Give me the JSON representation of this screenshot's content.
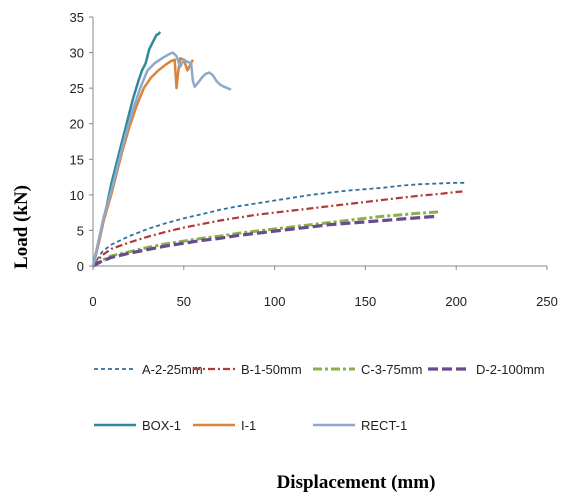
{
  "chart_data": {
    "type": "line",
    "title": "",
    "xlabel": "Displacement (mm)",
    "ylabel": "Load (kN)",
    "xlim": [
      0,
      250
    ],
    "ylim": [
      0,
      35
    ],
    "xticks": [
      "0",
      "50",
      "100",
      "150",
      "200",
      "250"
    ],
    "yticks": [
      "0",
      "5",
      "10",
      "15",
      "20",
      "25",
      "30",
      "35"
    ],
    "grid": false,
    "legend_position": "bottom",
    "series": [
      {
        "name": "A-2-25mm",
        "color": "#2f6f9f",
        "dash": "dotted",
        "points": [
          [
            0,
            0
          ],
          [
            5,
            2
          ],
          [
            10,
            3
          ],
          [
            20,
            4.2
          ],
          [
            30,
            5.2
          ],
          [
            40,
            6
          ],
          [
            50,
            6.7
          ],
          [
            60,
            7.3
          ],
          [
            70,
            7.9
          ],
          [
            80,
            8.4
          ],
          [
            90,
            8.8
          ],
          [
            100,
            9.2
          ],
          [
            110,
            9.6
          ],
          [
            120,
            10
          ],
          [
            130,
            10.3
          ],
          [
            140,
            10.6
          ],
          [
            150,
            10.8
          ],
          [
            160,
            11
          ],
          [
            170,
            11.3
          ],
          [
            180,
            11.5
          ],
          [
            190,
            11.6
          ],
          [
            200,
            11.7
          ],
          [
            205,
            11.7
          ]
        ]
      },
      {
        "name": "B-1-50mm",
        "color": "#b03a3a",
        "dash": "dashdot",
        "points": [
          [
            0,
            0
          ],
          [
            5,
            1.5
          ],
          [
            10,
            2.4
          ],
          [
            20,
            3.3
          ],
          [
            30,
            4.1
          ],
          [
            40,
            4.8
          ],
          [
            50,
            5.4
          ],
          [
            60,
            5.9
          ],
          [
            70,
            6.4
          ],
          [
            80,
            6.8
          ],
          [
            90,
            7.2
          ],
          [
            100,
            7.5
          ],
          [
            110,
            7.8
          ],
          [
            120,
            8.1
          ],
          [
            130,
            8.4
          ],
          [
            140,
            8.7
          ],
          [
            150,
            9
          ],
          [
            160,
            9.3
          ],
          [
            170,
            9.6
          ],
          [
            180,
            9.9
          ],
          [
            190,
            10.1
          ],
          [
            200,
            10.4
          ],
          [
            205,
            10.5
          ]
        ]
      },
      {
        "name": "C-3-75mm",
        "color": "#8ab04a",
        "dash": "longdashdot",
        "points": [
          [
            0,
            0
          ],
          [
            5,
            0.8
          ],
          [
            10,
            1.4
          ],
          [
            20,
            2
          ],
          [
            30,
            2.6
          ],
          [
            40,
            3.1
          ],
          [
            50,
            3.5
          ],
          [
            60,
            3.9
          ],
          [
            70,
            4.2
          ],
          [
            80,
            4.6
          ],
          [
            90,
            4.9
          ],
          [
            100,
            5.2
          ],
          [
            110,
            5.5
          ],
          [
            120,
            5.8
          ],
          [
            130,
            6.1
          ],
          [
            140,
            6.4
          ],
          [
            150,
            6.7
          ],
          [
            160,
            7
          ],
          [
            170,
            7.2
          ],
          [
            178,
            7.4
          ],
          [
            185,
            7.5
          ],
          [
            190,
            7.6
          ]
        ]
      },
      {
        "name": "D-2-100mm",
        "color": "#6a4a8f",
        "dash": "longdash",
        "points": [
          [
            0,
            0
          ],
          [
            5,
            0.7
          ],
          [
            10,
            1.2
          ],
          [
            20,
            1.8
          ],
          [
            30,
            2.3
          ],
          [
            40,
            2.8
          ],
          [
            50,
            3.2
          ],
          [
            60,
            3.6
          ],
          [
            70,
            3.9
          ],
          [
            80,
            4.3
          ],
          [
            90,
            4.6
          ],
          [
            100,
            4.9
          ],
          [
            110,
            5.2
          ],
          [
            120,
            5.5
          ],
          [
            130,
            5.8
          ],
          [
            140,
            6
          ],
          [
            150,
            6.2
          ],
          [
            160,
            6.4
          ],
          [
            170,
            6.6
          ],
          [
            180,
            6.8
          ],
          [
            190,
            7
          ]
        ]
      },
      {
        "name": "BOX-1",
        "color": "#2e8a9a",
        "dash": "solid",
        "points": [
          [
            0,
            0
          ],
          [
            2,
            2
          ],
          [
            5,
            5.5
          ],
          [
            8,
            9
          ],
          [
            10,
            11.5
          ],
          [
            12,
            13.5
          ],
          [
            15,
            16.5
          ],
          [
            18,
            19.5
          ],
          [
            20,
            21.5
          ],
          [
            22,
            23.5
          ],
          [
            25,
            26
          ],
          [
            27,
            27.5
          ],
          [
            29,
            28.5
          ],
          [
            30,
            29.5
          ],
          [
            31,
            30.5
          ],
          [
            32,
            31
          ],
          [
            33,
            31.5
          ],
          [
            34,
            32
          ],
          [
            35,
            32.5
          ],
          [
            36,
            32.6
          ],
          [
            37,
            32.9
          ]
        ]
      },
      {
        "name": "I-1",
        "color": "#d9843a",
        "dash": "solid",
        "points": [
          [
            0,
            0
          ],
          [
            3,
            3
          ],
          [
            6,
            6.5
          ],
          [
            10,
            10
          ],
          [
            13,
            13
          ],
          [
            16,
            16
          ],
          [
            20,
            19.5
          ],
          [
            24,
            22.5
          ],
          [
            28,
            25
          ],
          [
            32,
            26.5
          ],
          [
            36,
            27.5
          ],
          [
            40,
            28.3
          ],
          [
            43,
            28.8
          ],
          [
            45,
            29
          ],
          [
            46,
            25
          ],
          [
            47,
            27.5
          ],
          [
            48,
            29.2
          ],
          [
            50,
            29
          ],
          [
            52,
            27.5
          ],
          [
            54,
            28.5
          ],
          [
            55,
            29
          ]
        ]
      },
      {
        "name": "RECT-1",
        "color": "#8ea8cc",
        "dash": "solid",
        "points": [
          [
            0,
            0
          ],
          [
            3,
            3.5
          ],
          [
            6,
            7
          ],
          [
            10,
            10.5
          ],
          [
            14,
            14.5
          ],
          [
            18,
            18.5
          ],
          [
            22,
            22
          ],
          [
            26,
            25
          ],
          [
            30,
            27.5
          ],
          [
            34,
            28.5
          ],
          [
            38,
            29.2
          ],
          [
            42,
            29.8
          ],
          [
            44,
            30
          ],
          [
            46,
            29.5
          ],
          [
            48,
            28
          ],
          [
            50,
            29
          ],
          [
            52,
            28.7
          ],
          [
            54,
            28.5
          ],
          [
            55,
            26
          ],
          [
            56,
            25.2
          ],
          [
            58,
            25.8
          ],
          [
            60,
            26.5
          ],
          [
            62,
            27
          ],
          [
            64,
            27.2
          ],
          [
            66,
            26.8
          ],
          [
            68,
            26
          ],
          [
            70,
            25.5
          ],
          [
            72,
            25.2
          ],
          [
            74,
            25
          ],
          [
            76,
            24.8
          ]
        ]
      }
    ]
  }
}
